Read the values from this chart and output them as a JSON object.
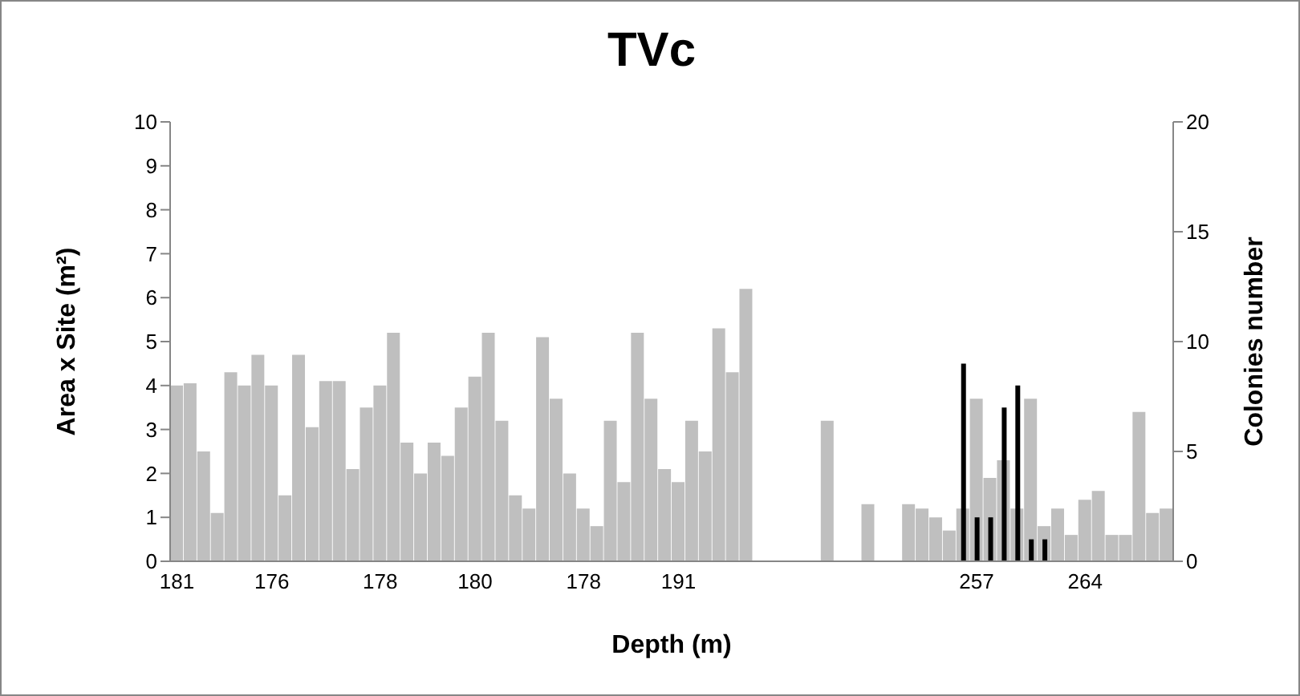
{
  "chart_data": {
    "type": "bar",
    "title": "TVc",
    "xlabel": "Depth (m)",
    "ylabel": "Area x Site (m²)",
    "y2label": "Colonies number",
    "categories": [
      "181",
      null,
      null,
      null,
      null,
      null,
      null,
      "176",
      null,
      null,
      null,
      null,
      null,
      null,
      null,
      "178",
      null,
      null,
      null,
      null,
      null,
      null,
      "180",
      null,
      null,
      null,
      null,
      null,
      null,
      null,
      "178",
      null,
      null,
      null,
      null,
      null,
      null,
      "191",
      null,
      null,
      null,
      null,
      null,
      null,
      null,
      null,
      null,
      null,
      null,
      null,
      null,
      null,
      null,
      null,
      null,
      null,
      null,
      null,
      null,
      "257",
      null,
      null,
      null,
      null,
      null,
      null,
      null,
      "264",
      null,
      null,
      null,
      null,
      null,
      null
    ],
    "series": [
      {
        "color": "#bfbfbf",
        "values": [
          4.0,
          4.05,
          2.5,
          1.1,
          4.3,
          4.0,
          4.7,
          4.0,
          1.5,
          4.7,
          3.05,
          4.1,
          4.1,
          2.1,
          3.5,
          4.0,
          5.2,
          2.7,
          2.0,
          2.7,
          2.4,
          3.5,
          4.2,
          5.2,
          3.2,
          1.5,
          1.2,
          5.1,
          3.7,
          2.0,
          1.2,
          0.8,
          3.2,
          1.8,
          5.2,
          3.7,
          2.1,
          1.8,
          3.2,
          2.5,
          5.3,
          4.3,
          6.2,
          null,
          null,
          null,
          null,
          null,
          3.2,
          null,
          null,
          1.3,
          null,
          null,
          1.3,
          1.2,
          1.0,
          0.7,
          1.2,
          3.7,
          1.9,
          2.3,
          1.2,
          3.7,
          0.8,
          1.2,
          0.6,
          1.4,
          1.6,
          0.6,
          0.6,
          3.4,
          1.1,
          1.2
        ]
      },
      {
        "color": "#000000",
        "axis": "y2",
        "values": [
          null,
          null,
          null,
          null,
          null,
          null,
          null,
          null,
          null,
          null,
          null,
          null,
          null,
          null,
          null,
          null,
          null,
          null,
          null,
          null,
          null,
          null,
          null,
          null,
          null,
          null,
          null,
          null,
          null,
          null,
          null,
          null,
          null,
          null,
          null,
          null,
          null,
          null,
          null,
          null,
          null,
          null,
          null,
          null,
          null,
          null,
          null,
          null,
          null,
          null,
          null,
          null,
          null,
          null,
          null,
          null,
          null,
          null,
          9,
          2,
          2,
          7,
          8,
          1,
          1,
          null,
          null,
          null,
          null,
          null,
          null,
          null,
          null,
          null
        ]
      }
    ],
    "ylim": [
      0,
      10
    ],
    "yticks": [
      0,
      1,
      2,
      3,
      4,
      5,
      6,
      7,
      8,
      9,
      10
    ],
    "y2lim": [
      0,
      20
    ],
    "y2ticks": [
      0,
      5,
      10,
      15,
      20
    ],
    "grid": false,
    "legend": false
  }
}
